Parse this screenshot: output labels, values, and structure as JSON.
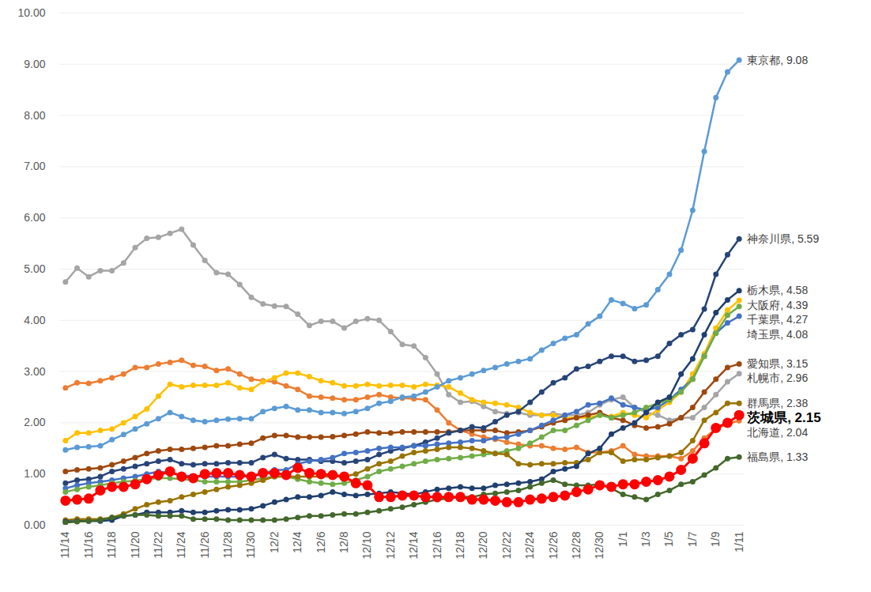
{
  "chart_data": {
    "type": "line",
    "categories": [
      "11/14",
      null,
      "11/16",
      null,
      "11/18",
      null,
      "11/20",
      null,
      "11/22",
      null,
      "11/24",
      null,
      "11/26",
      null,
      "11/28",
      null,
      "11/30",
      null,
      "12/2",
      null,
      "12/4",
      null,
      "12/6",
      null,
      "12/8",
      null,
      "12/10",
      null,
      "12/12",
      null,
      "12/14",
      null,
      "12/16",
      null,
      "12/18",
      null,
      "12/20",
      null,
      "12/22",
      null,
      "12/24",
      null,
      "12/26",
      null,
      "12/28",
      null,
      "12/30",
      null,
      "1/1",
      null,
      "1/3",
      null,
      "1/5",
      null,
      "1/7",
      null,
      "1/9",
      null,
      "1/11"
    ],
    "ylim": [
      0,
      10
    ],
    "yticks": [
      {
        "value": 0,
        "label": "0.00"
      },
      {
        "value": 1,
        "label": "1.00"
      },
      {
        "value": 2,
        "label": "2.00"
      },
      {
        "value": 3,
        "label": "3.00"
      },
      {
        "value": 4,
        "label": "4.00"
      },
      {
        "value": 5,
        "label": "5.00"
      },
      {
        "value": 6,
        "label": "6.00"
      },
      {
        "value": 7,
        "label": "7.00"
      },
      {
        "value": 8,
        "label": "8.00"
      },
      {
        "value": 9,
        "label": "9.00"
      },
      {
        "value": 10,
        "label": "10.00"
      }
    ],
    "grid": true,
    "tick_labels": true,
    "series": [
      {
        "name": "札幌市",
        "color": "#a5a5a5",
        "marker": "circle",
        "line_style": "solid",
        "values": [
          4.75,
          5.02,
          4.85,
          4.97,
          4.97,
          5.12,
          5.42,
          5.6,
          5.62,
          5.7,
          5.78,
          5.47,
          5.17,
          4.93,
          4.9,
          4.7,
          4.45,
          4.32,
          4.28,
          4.27,
          4.12,
          3.9,
          3.98,
          3.98,
          3.85,
          3.98,
          4.03,
          4.0,
          3.78,
          3.53,
          3.5,
          3.27,
          2.95,
          2.55,
          2.4,
          2.42,
          2.32,
          2.22,
          2.18,
          2.2,
          2.15,
          2.15,
          2.18,
          2.15,
          2.15,
          2.2,
          2.35,
          2.45,
          2.5,
          2.3,
          2.2,
          2.15,
          2.05,
          2.1,
          2.1,
          2.3,
          2.55,
          2.8,
          2.96
        ]
      },
      {
        "name": "北海道",
        "color": "#ed7d31",
        "marker": "circle",
        "line_style": "solid",
        "values": [
          2.68,
          2.78,
          2.77,
          2.82,
          2.88,
          2.95,
          3.08,
          3.08,
          3.15,
          3.18,
          3.22,
          3.12,
          3.1,
          3.02,
          3.05,
          2.95,
          2.85,
          2.82,
          2.8,
          2.72,
          2.65,
          2.52,
          2.5,
          2.48,
          2.45,
          2.45,
          2.5,
          2.55,
          2.5,
          2.48,
          2.47,
          2.45,
          2.25,
          2.0,
          1.85,
          1.78,
          1.72,
          1.68,
          1.62,
          1.58,
          1.55,
          1.55,
          1.5,
          1.48,
          1.52,
          1.42,
          1.42,
          1.45,
          1.55,
          1.38,
          1.35,
          1.35,
          1.35,
          1.3,
          1.45,
          1.7,
          1.88,
          1.98,
          2.04
        ]
      },
      {
        "name": "大阪府",
        "color": "#ffc000",
        "marker": "circle",
        "line_style": "solid",
        "values": [
          1.65,
          1.8,
          1.8,
          1.85,
          1.88,
          2.0,
          2.12,
          2.27,
          2.52,
          2.75,
          2.7,
          2.73,
          2.73,
          2.73,
          2.78,
          2.68,
          2.65,
          2.8,
          2.88,
          2.97,
          2.97,
          2.9,
          2.82,
          2.78,
          2.72,
          2.72,
          2.75,
          2.72,
          2.73,
          2.73,
          2.7,
          2.75,
          2.73,
          2.7,
          2.58,
          2.45,
          2.4,
          2.38,
          2.35,
          2.3,
          2.2,
          2.15,
          2.15,
          2.1,
          2.1,
          2.1,
          2.15,
          2.12,
          2.2,
          2.15,
          2.1,
          2.25,
          2.4,
          2.6,
          2.95,
          3.35,
          3.85,
          4.2,
          4.39
        ]
      },
      {
        "name": "東京都",
        "color": "#5b9bd5",
        "marker": "circle",
        "line_style": "solid",
        "values": [
          1.47,
          1.52,
          1.53,
          1.55,
          1.67,
          1.77,
          1.88,
          1.98,
          2.08,
          2.2,
          2.12,
          2.05,
          2.02,
          2.05,
          2.07,
          2.08,
          2.08,
          2.22,
          2.28,
          2.32,
          2.25,
          2.25,
          2.2,
          2.2,
          2.18,
          2.22,
          2.28,
          2.38,
          2.42,
          2.5,
          2.52,
          2.6,
          2.7,
          2.82,
          2.88,
          2.95,
          3.02,
          3.08,
          3.15,
          3.2,
          3.25,
          3.42,
          3.55,
          3.65,
          3.72,
          3.93,
          4.08,
          4.4,
          4.33,
          4.23,
          4.3,
          4.6,
          4.9,
          5.37,
          6.15,
          7.3,
          8.35,
          8.85,
          9.08
        ]
      },
      {
        "name": "愛知県",
        "color": "#9e480e",
        "marker": "circle",
        "line_style": "solid",
        "values": [
          1.05,
          1.08,
          1.1,
          1.12,
          1.18,
          1.25,
          1.32,
          1.4,
          1.45,
          1.48,
          1.48,
          1.5,
          1.52,
          1.55,
          1.55,
          1.58,
          1.6,
          1.7,
          1.75,
          1.75,
          1.72,
          1.72,
          1.72,
          1.73,
          1.75,
          1.78,
          1.82,
          1.8,
          1.8,
          1.82,
          1.82,
          1.82,
          1.82,
          1.82,
          1.85,
          1.85,
          1.85,
          1.85,
          1.8,
          1.82,
          1.85,
          1.92,
          2.0,
          2.05,
          2.1,
          2.15,
          2.2,
          2.1,
          2.05,
          1.95,
          1.9,
          1.92,
          1.98,
          2.1,
          2.3,
          2.6,
          2.85,
          3.08,
          3.15
        ]
      },
      {
        "name": "神奈川県",
        "color": "#264478",
        "marker": "circle",
        "line_style": "solid",
        "values": [
          0.82,
          0.88,
          0.9,
          0.95,
          1.05,
          1.1,
          1.15,
          1.2,
          1.25,
          1.28,
          1.2,
          1.18,
          1.2,
          1.2,
          1.22,
          1.22,
          1.22,
          1.32,
          1.38,
          1.3,
          1.28,
          1.28,
          1.25,
          1.25,
          1.22,
          1.25,
          1.28,
          1.38,
          1.45,
          1.5,
          1.55,
          1.62,
          1.7,
          1.8,
          1.85,
          1.92,
          1.9,
          2.02,
          2.15,
          2.22,
          2.4,
          2.6,
          2.78,
          2.88,
          3.05,
          3.1,
          3.2,
          3.3,
          3.3,
          3.2,
          3.22,
          3.3,
          3.55,
          3.72,
          3.82,
          4.22,
          4.9,
          5.28,
          5.59
        ]
      },
      {
        "name": "埼玉県",
        "color": "#4472c4",
        "marker": "circle",
        "line_style": "solid",
        "values": [
          0.72,
          0.78,
          0.82,
          0.85,
          0.88,
          0.92,
          0.95,
          1.0,
          1.05,
          1.02,
          0.98,
          0.95,
          0.95,
          0.95,
          0.95,
          0.95,
          0.95,
          1.0,
          1.08,
          1.08,
          1.2,
          1.25,
          1.28,
          1.32,
          1.4,
          1.42,
          1.45,
          1.5,
          1.52,
          1.52,
          1.55,
          1.55,
          1.58,
          1.6,
          1.62,
          1.65,
          1.65,
          1.7,
          1.72,
          1.78,
          1.85,
          1.95,
          2.05,
          2.15,
          2.22,
          2.35,
          2.38,
          2.48,
          2.35,
          2.3,
          2.25,
          2.3,
          2.45,
          2.65,
          2.85,
          3.3,
          3.75,
          3.95,
          4.08
        ]
      },
      {
        "name": "千葉県",
        "color": "#70ad47",
        "marker": "circle",
        "line_style": "solid",
        "values": [
          0.65,
          0.7,
          0.75,
          0.78,
          0.82,
          0.85,
          0.87,
          0.9,
          0.92,
          0.92,
          0.9,
          0.88,
          0.85,
          0.85,
          0.85,
          0.85,
          0.88,
          0.92,
          0.95,
          0.95,
          0.9,
          0.85,
          0.82,
          0.8,
          0.82,
          0.88,
          0.95,
          1.05,
          1.1,
          1.15,
          1.2,
          1.25,
          1.28,
          1.3,
          1.32,
          1.35,
          1.38,
          1.4,
          1.45,
          1.5,
          1.6,
          1.72,
          1.85,
          1.85,
          1.95,
          2.05,
          2.15,
          2.1,
          2.15,
          2.2,
          2.3,
          2.38,
          2.45,
          2.6,
          2.85,
          3.3,
          3.75,
          4.1,
          4.27
        ]
      },
      {
        "name": "群馬県",
        "color": "#997300",
        "marker": "circle",
        "line_style": "solid",
        "values": [
          0.1,
          0.12,
          0.12,
          0.12,
          0.15,
          0.22,
          0.32,
          0.4,
          0.45,
          0.48,
          0.55,
          0.6,
          0.65,
          0.7,
          0.75,
          0.78,
          0.82,
          0.88,
          0.95,
          0.95,
          0.95,
          0.95,
          0.95,
          0.95,
          0.95,
          1.0,
          1.1,
          1.2,
          1.25,
          1.35,
          1.42,
          1.45,
          1.48,
          1.52,
          1.52,
          1.5,
          1.45,
          1.4,
          1.38,
          1.2,
          1.18,
          1.2,
          1.2,
          1.22,
          1.22,
          1.28,
          1.42,
          1.42,
          1.25,
          1.28,
          1.28,
          1.32,
          1.35,
          1.42,
          1.65,
          2.05,
          2.2,
          2.38,
          2.38
        ]
      },
      {
        "name": "栃木県",
        "color": "#1f3f6e",
        "marker": "circle",
        "line_style": "solid",
        "values": [
          0.07,
          0.08,
          0.08,
          0.08,
          0.1,
          0.18,
          0.2,
          0.25,
          0.25,
          0.25,
          0.28,
          0.25,
          0.25,
          0.28,
          0.3,
          0.3,
          0.32,
          0.38,
          0.45,
          0.5,
          0.55,
          0.55,
          0.58,
          0.65,
          0.6,
          0.58,
          0.6,
          0.62,
          0.65,
          0.62,
          0.6,
          0.65,
          0.7,
          0.72,
          0.75,
          0.72,
          0.72,
          0.78,
          0.8,
          0.82,
          0.85,
          0.9,
          1.05,
          1.1,
          1.15,
          1.4,
          1.5,
          1.78,
          1.9,
          2.0,
          2.2,
          2.4,
          2.5,
          2.95,
          3.25,
          3.72,
          4.15,
          4.4,
          4.58
        ]
      },
      {
        "name": "福島県",
        "color": "#43682b",
        "marker": "circle",
        "line_style": "solid",
        "values": [
          0.05,
          0.07,
          0.08,
          0.1,
          0.15,
          0.18,
          0.2,
          0.2,
          0.18,
          0.18,
          0.18,
          0.12,
          0.12,
          0.12,
          0.1,
          0.1,
          0.1,
          0.1,
          0.1,
          0.12,
          0.15,
          0.18,
          0.18,
          0.2,
          0.22,
          0.22,
          0.25,
          0.28,
          0.32,
          0.35,
          0.4,
          0.45,
          0.5,
          0.52,
          0.55,
          0.55,
          0.6,
          0.62,
          0.65,
          0.68,
          0.75,
          0.82,
          0.88,
          0.8,
          0.78,
          0.78,
          0.8,
          0.72,
          0.6,
          0.55,
          0.5,
          0.6,
          0.68,
          0.8,
          0.85,
          0.98,
          1.12,
          1.3,
          1.33
        ]
      },
      {
        "name": "茨城県",
        "color": "#ff0000",
        "marker": "circle",
        "line_style": "thick",
        "values": [
          0.48,
          0.5,
          0.52,
          0.68,
          0.75,
          0.75,
          0.8,
          0.9,
          0.98,
          1.05,
          0.95,
          0.92,
          1.0,
          1.02,
          1.02,
          0.98,
          0.95,
          1.02,
          1.02,
          0.98,
          1.12,
          1.02,
          1.0,
          0.98,
          0.95,
          0.82,
          0.78,
          0.55,
          0.55,
          0.58,
          0.58,
          0.55,
          0.55,
          0.55,
          0.55,
          0.5,
          0.5,
          0.48,
          0.45,
          0.45,
          0.5,
          0.52,
          0.55,
          0.58,
          0.65,
          0.7,
          0.78,
          0.75,
          0.8,
          0.8,
          0.85,
          0.88,
          0.95,
          1.08,
          1.3,
          1.6,
          1.9,
          2.0,
          2.15
        ]
      }
    ],
    "annotations": [
      {
        "text": "東京都, 9.08",
        "series": "東京都",
        "x": "1/11",
        "y": 9.08
      },
      {
        "text": "神奈川県, 5.59",
        "series": "神奈川県",
        "x": "1/11",
        "y": 5.59
      },
      {
        "text": "栃木県, 4.58",
        "series": "栃木県",
        "x": "1/11",
        "y": 4.58
      },
      {
        "text": "大阪府, 4.39",
        "series": "大阪府",
        "x": "1/11",
        "y": 4.39
      },
      {
        "text": "千葉県, 4.27",
        "series": "千葉県",
        "x": "1/11",
        "y": 4.27
      },
      {
        "text": "埼玉県, 4.08",
        "series": "埼玉県",
        "x": "1/11",
        "y": 4.08
      },
      {
        "text": "愛知県, 3.15",
        "series": "愛知県",
        "x": "1/11",
        "y": 3.15
      },
      {
        "text": "札幌市, 2.96",
        "series": "札幌市",
        "x": "1/11",
        "y": 2.96
      },
      {
        "text": "群馬県, 2.38",
        "series": "群馬県",
        "x": "1/11",
        "y": 2.38
      },
      {
        "text": "茨城県, 2.15",
        "series": "茨城県",
        "x": "1/11",
        "y": 2.15
      },
      {
        "text": "北海道, 2.04",
        "series": "北海道",
        "x": "1/11",
        "y": 2.04
      },
      {
        "text": "福島県, 1.33",
        "series": "福島県",
        "x": "1/11",
        "y": 1.33
      }
    ]
  }
}
